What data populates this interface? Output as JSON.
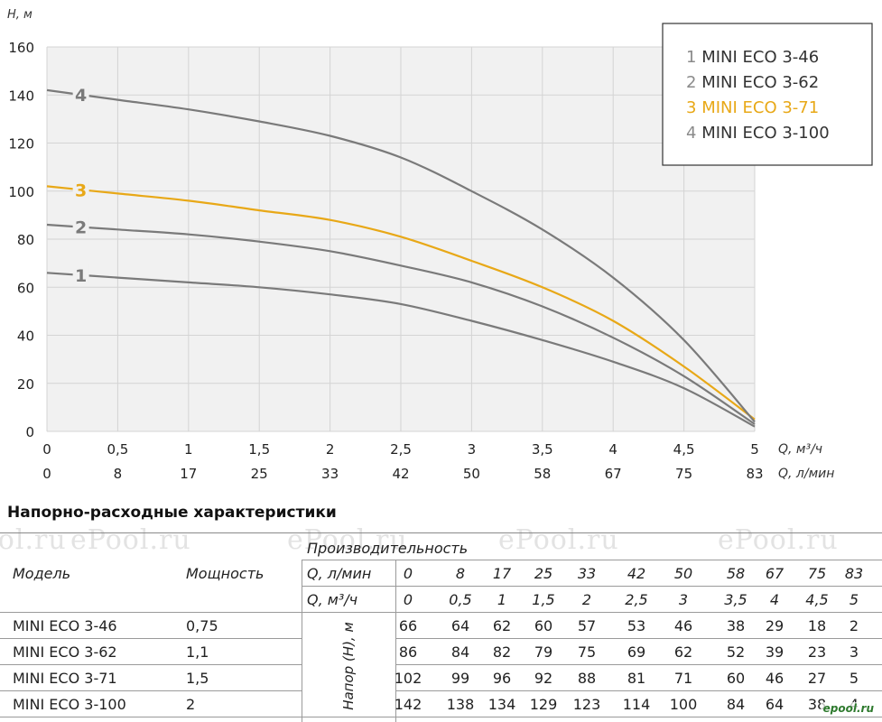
{
  "chart_data": {
    "type": "line",
    "ylabel": "H, м",
    "xlabel_primary": "Q, м³/ч",
    "xlabel_secondary": "Q, л/мин",
    "ylim": [
      0,
      160
    ],
    "yticks": [
      0,
      20,
      40,
      60,
      80,
      100,
      120,
      140,
      160
    ],
    "xlim": [
      0,
      5
    ],
    "xticks": [
      0,
      0.5,
      1,
      1.5,
      2,
      2.5,
      3,
      3.5,
      4,
      4.5,
      5
    ],
    "xtick_labels": [
      "0",
      "0,5",
      "1",
      "1,5",
      "2",
      "2,5",
      "3",
      "3,5",
      "4",
      "4,5",
      "5"
    ],
    "xtick_labels_secondary": [
      "0",
      "8",
      "17",
      "25",
      "33",
      "42",
      "50",
      "58",
      "67",
      "75",
      "83"
    ],
    "grid": true,
    "legend_position": "top-right",
    "x": [
      0,
      0.5,
      1,
      1.5,
      2,
      2.5,
      3,
      3.5,
      4,
      4.5,
      5
    ],
    "series": [
      {
        "name": "MINI ECO 3-46",
        "number": "1",
        "color": "#7a7a7a",
        "values": [
          66,
          64,
          62,
          60,
          57,
          53,
          46,
          38,
          29,
          18,
          2
        ]
      },
      {
        "name": "MINI ECO 3-62",
        "number": "2",
        "color": "#7a7a7a",
        "values": [
          86,
          84,
          82,
          79,
          75,
          69,
          62,
          52,
          39,
          23,
          3
        ]
      },
      {
        "name": "MINI ECO 3-71",
        "number": "3",
        "color": "#e8a817",
        "values": [
          102,
          99,
          96,
          92,
          88,
          81,
          71,
          60,
          46,
          27,
          5
        ]
      },
      {
        "name": "MINI ECO 3-100",
        "number": "4",
        "color": "#7a7a7a",
        "values": [
          142,
          138,
          134,
          129,
          123,
          114,
          100,
          84,
          64,
          38,
          4
        ]
      }
    ]
  },
  "watermark": "ePool.ru",
  "table": {
    "title": "Напорно-расходные характеристики",
    "header_model": "Модель",
    "header_power": "Мощность",
    "header_performance": "Производительность",
    "row_q_lmin_label": "Q, л/мин",
    "row_q_m3h_label": "Q, м³/ч",
    "head_label": "Напор (H), м",
    "q_lmin": [
      "0",
      "8",
      "17",
      "25",
      "33",
      "42",
      "50",
      "58",
      "67",
      "75",
      "83"
    ],
    "q_m3h": [
      "0",
      "0,5",
      "1",
      "1,5",
      "2",
      "2,5",
      "3",
      "3,5",
      "4",
      "4,5",
      "5"
    ],
    "rows": [
      {
        "model": "MINI ECO 3-46",
        "power": "0,75",
        "values": [
          "66",
          "64",
          "62",
          "60",
          "57",
          "53",
          "46",
          "38",
          "29",
          "18",
          "2"
        ]
      },
      {
        "model": "MINI ECO 3-62",
        "power": "1,1",
        "values": [
          "86",
          "84",
          "82",
          "79",
          "75",
          "69",
          "62",
          "52",
          "39",
          "23",
          "3"
        ]
      },
      {
        "model": "MINI ECO 3-71",
        "power": "1,5",
        "values": [
          "102",
          "99",
          "96",
          "92",
          "88",
          "81",
          "71",
          "60",
          "46",
          "27",
          "5"
        ]
      },
      {
        "model": "MINI ECO 3-100",
        "power": "2",
        "values": [
          "142",
          "138",
          "134",
          "129",
          "123",
          "114",
          "100",
          "84",
          "64",
          "38",
          "4"
        ]
      }
    ]
  },
  "corner_logo": "epool.ru"
}
